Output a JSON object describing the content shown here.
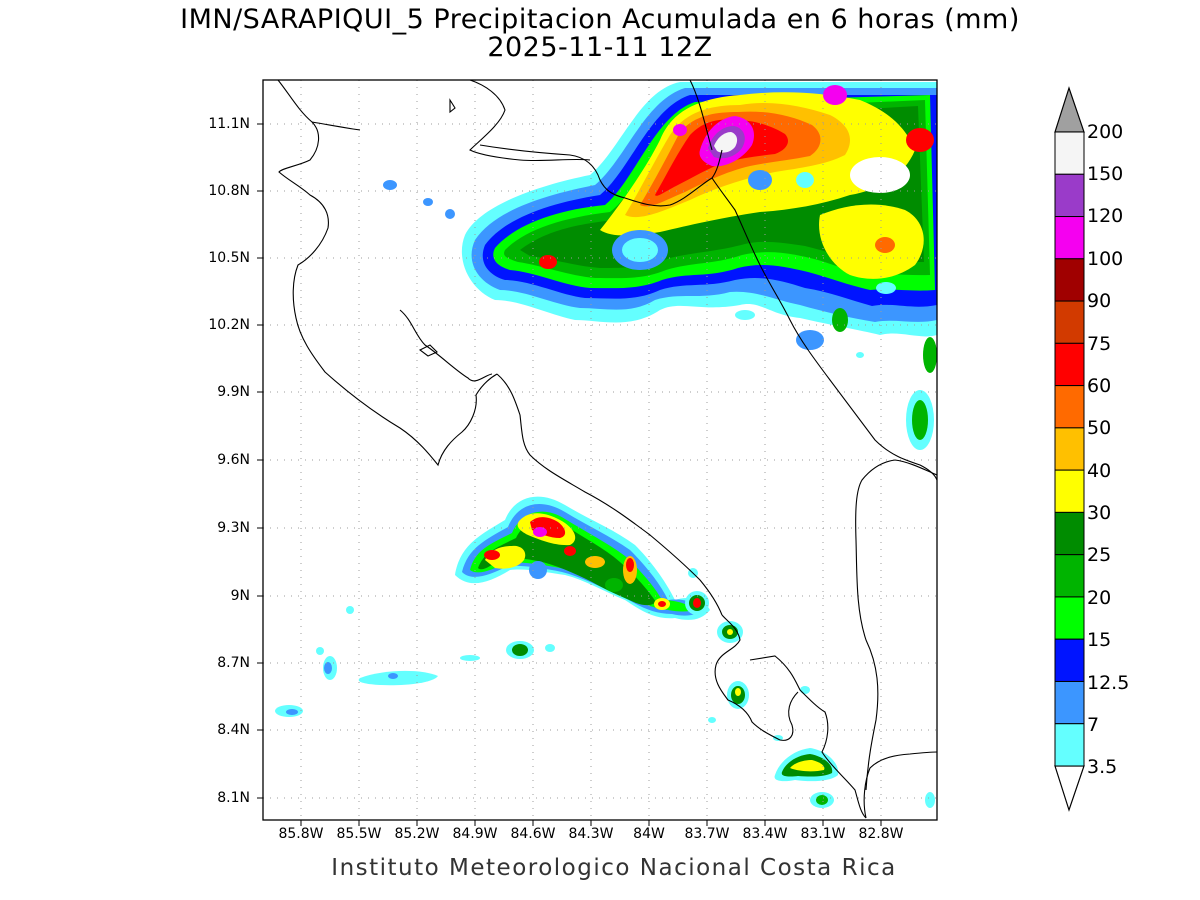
{
  "title": {
    "line1": "IMN/SARAPIQUI_5 Precipitacion Acumulada en 6 horas (mm)",
    "line2": "2025-11-11 12Z"
  },
  "footer": "Instituto Meteorologico Nacional Costa Rica",
  "map": {
    "lat_labels": [
      "11.1N",
      "10.8N",
      "10.5N",
      "10.2N",
      "9.9N",
      "9.6N",
      "9.3N",
      "9N",
      "8.7N",
      "8.4N",
      "8.1N"
    ],
    "lon_labels": [
      "85.8W",
      "85.5W",
      "85.2W",
      "84.9W",
      "84.6W",
      "84.3W",
      "84W",
      "83.7W",
      "83.4W",
      "83.1W",
      "82.8W"
    ],
    "lat_range": [
      8.0,
      11.3
    ],
    "lon_range": [
      -86.0,
      -83.0
    ],
    "grid": "dotted"
  },
  "colorbar": {
    "labels": [
      "200",
      "150",
      "120",
      "100",
      "90",
      "75",
      "60",
      "50",
      "40",
      "30",
      "25",
      "20",
      "15",
      "12.5",
      "7",
      "3.5"
    ],
    "colors": [
      "#f5f5f5",
      "#9a3bc9",
      "#f500f0",
      "#a00000",
      "#d23a00",
      "#ff0000",
      "#ff6a00",
      "#ffc000",
      "#ffff00",
      "#008c00",
      "#00b400",
      "#00ff00",
      "#0014ff",
      "#3c96ff",
      "#64ffff"
    ],
    "top_arrow_color": "#a0a0a0",
    "bottom_arrow_color": "#ffffff"
  }
}
